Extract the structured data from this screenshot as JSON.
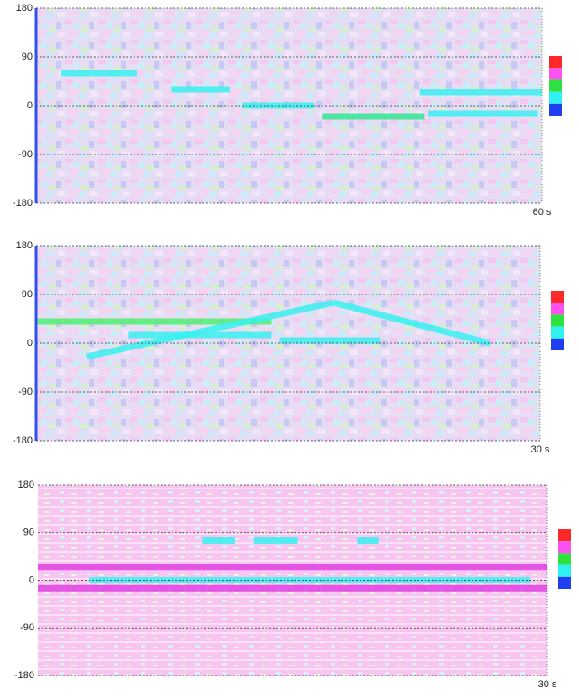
{
  "chart_data": [
    {
      "type": "line",
      "xlim": [
        0,
        60
      ],
      "xticks": [
        {
          "value": 60,
          "label": "60 s"
        }
      ],
      "ylim": [
        -180,
        180
      ],
      "yticks": [
        -180,
        -90,
        0,
        90,
        180
      ],
      "grid": true,
      "colorscale": [
        "#ff2828",
        "#ff50f0",
        "#30e040",
        "#30f0f0",
        "#2040f0"
      ],
      "tracks": [
        {
          "color": "#38f0f0",
          "x": [
            3,
            12
          ],
          "values": [
            60,
            60
          ]
        },
        {
          "color": "#38f0f0",
          "x": [
            16,
            23
          ],
          "values": [
            30,
            30
          ]
        },
        {
          "color": "#38f0f0",
          "x": [
            24.5,
            33
          ],
          "values": [
            0,
            0
          ]
        },
        {
          "color": "#30e890",
          "x": [
            34,
            46
          ],
          "values": [
            -20,
            -20
          ]
        },
        {
          "color": "#38f0f0",
          "x": [
            45.5,
            60
          ],
          "values": [
            25,
            25
          ]
        },
        {
          "color": "#38f0f0",
          "x": [
            46.5,
            59.5
          ],
          "values": [
            -15,
            -15
          ]
        }
      ]
    },
    {
      "type": "line",
      "xlim": [
        0,
        30
      ],
      "xticks": [
        {
          "value": 30,
          "label": "30 s"
        }
      ],
      "ylim": [
        -180,
        180
      ],
      "yticks": [
        -180,
        -90,
        0,
        90,
        180
      ],
      "grid": true,
      "colorscale": [
        "#ff2828",
        "#ff50f0",
        "#30e040",
        "#30f0f0",
        "#2040f0"
      ],
      "tracks": [
        {
          "color": "#50ee70",
          "x": [
            0,
            14
          ],
          "values": [
            40,
            40
          ]
        },
        {
          "color": "#38f0f0",
          "x": [
            3,
            17.7
          ],
          "values": [
            -25,
            75
          ]
        },
        {
          "color": "#38f0f0",
          "x": [
            17.7,
            27
          ],
          "values": [
            75,
            0
          ]
        },
        {
          "color": "#38f0f0",
          "x": [
            5.5,
            14
          ],
          "values": [
            15,
            15
          ]
        },
        {
          "color": "#38f0f0",
          "x": [
            14.5,
            20.5
          ],
          "values": [
            5,
            5
          ]
        }
      ]
    },
    {
      "type": "line",
      "xlim": [
        0,
        30
      ],
      "xticks": [
        {
          "value": 30,
          "label": "30 s"
        }
      ],
      "ylim": [
        -180,
        180
      ],
      "yticks": [
        -180,
        -90,
        0,
        90,
        180
      ],
      "grid": true,
      "colorscale": [
        "#ff2828",
        "#ff50f0",
        "#30e040",
        "#30f0f0",
        "#2040f0"
      ],
      "tracks": [
        {
          "color": "#e040e0",
          "x": [
            0,
            30
          ],
          "values": [
            25,
            25
          ]
        },
        {
          "color": "#e040e0",
          "x": [
            0,
            30
          ],
          "values": [
            -15,
            -15
          ]
        },
        {
          "color": "#38f0f0",
          "x": [
            3,
            29
          ],
          "values": [
            0,
            0
          ]
        },
        {
          "color": "#38f0f0",
          "x": [
            9.7,
            11.6
          ],
          "values": [
            75,
            75
          ]
        },
        {
          "color": "#38f0f0",
          "x": [
            12.7,
            15.3
          ],
          "values": [
            75,
            75
          ]
        },
        {
          "color": "#38f0f0",
          "x": [
            18.8,
            20.1
          ],
          "values": [
            75,
            75
          ]
        }
      ]
    }
  ]
}
